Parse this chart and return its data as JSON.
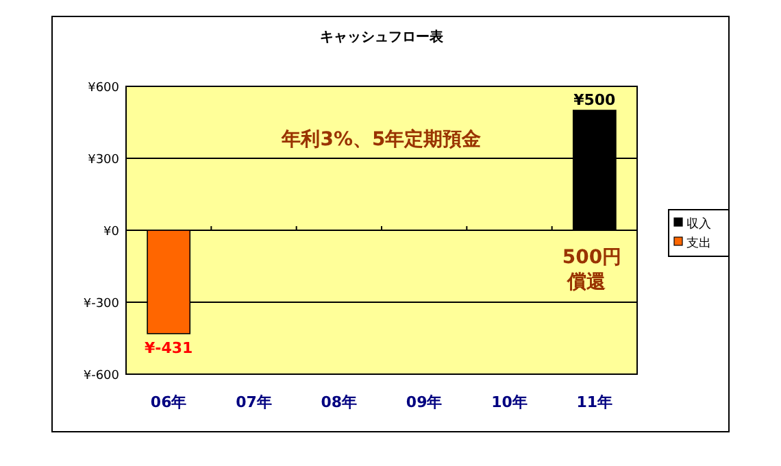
{
  "chart_data": {
    "type": "bar",
    "title": "キャッシュフロー表",
    "stacked": true,
    "categories": [
      "06年",
      "07年",
      "08年",
      "09年",
      "10年",
      "11年"
    ],
    "series": [
      {
        "name": "収入",
        "color": "#000000",
        "values": [
          null,
          null,
          null,
          null,
          null,
          500
        ],
        "value_labels": [
          null,
          null,
          null,
          null,
          null,
          "¥500"
        ]
      },
      {
        "name": "支出",
        "color": "#ff6600",
        "values": [
          -431,
          null,
          null,
          null,
          null,
          null
        ],
        "value_labels": [
          "¥-431",
          null,
          null,
          null,
          null,
          null
        ]
      }
    ],
    "ylim": [
      -600,
      600
    ],
    "yticks": [
      {
        "value": -600,
        "label": "¥-600"
      },
      {
        "value": -300,
        "label": "¥-300"
      },
      {
        "value": 0,
        "label": "¥0"
      },
      {
        "value": 300,
        "label": "¥300"
      },
      {
        "value": 600,
        "label": "¥600"
      }
    ],
    "grid": "y",
    "legend": "right",
    "annotations": [
      "年利3%、5年定期預金",
      "500円",
      "償還"
    ]
  }
}
